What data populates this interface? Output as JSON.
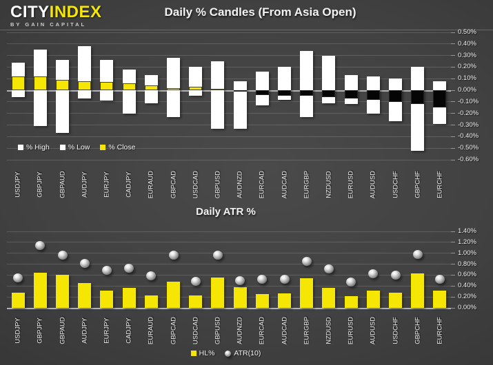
{
  "header": {
    "logo": {
      "brand_white": "CITY",
      "brand_yellow": "INDEX",
      "subtitle": "BY GAIN CAPITAL"
    }
  },
  "colors": {
    "accent_yellow": "#f5e606",
    "bar_white": "#ffffff",
    "close_negative": "#050505",
    "gridline": "rgba(255,255,255,0.15)",
    "zero_line": "#b2b2b2",
    "baseline": "#aeb2bf",
    "text": "#f0f0f0"
  },
  "chart_data": [
    {
      "type": "bar",
      "title": "Daily % Candles (From Asia Open)",
      "subtitle": "",
      "categories": [
        "USDJPY",
        "GBPJPY",
        "GBPAUD",
        "AUDJPY",
        "EURJPY",
        "CADJPY",
        "EURAUD",
        "GBPCAD",
        "USDCAD",
        "GBPUSD",
        "AUDNZD",
        "EURCAD",
        "AUDCAD",
        "EURGBP",
        "NZDUSD",
        "EURUSD",
        "AUDUSD",
        "USDCHF",
        "GBPCHF",
        "EURCHF"
      ],
      "series": [
        {
          "name": "% High",
          "values": [
            0.24,
            0.35,
            0.26,
            0.38,
            0.26,
            0.18,
            0.13,
            0.28,
            0.2,
            0.25,
            0.08,
            0.16,
            0.2,
            0.34,
            0.3,
            0.13,
            0.12,
            0.1,
            0.2,
            0.08
          ]
        },
        {
          "name": "% Low",
          "values": [
            -0.06,
            -0.31,
            -0.37,
            -0.07,
            -0.09,
            -0.2,
            -0.11,
            -0.23,
            -0.05,
            -0.33,
            -0.33,
            -0.13,
            -0.08,
            -0.23,
            -0.11,
            -0.12,
            -0.2,
            -0.27,
            -0.52,
            -0.29
          ]
        },
        {
          "name": "% Close",
          "values": [
            0.12,
            0.12,
            0.09,
            0.08,
            0.07,
            0.06,
            0.04,
            0.02,
            0.03,
            0.01,
            -0.01,
            -0.04,
            -0.05,
            -0.05,
            -0.06,
            -0.07,
            -0.08,
            -0.1,
            -0.12,
            -0.15
          ]
        }
      ],
      "ylim": [
        -0.6,
        0.5
      ],
      "ytick_step": 0.1,
      "yticks": [
        {
          "label": "0.50%",
          "value": 0.5
        },
        {
          "label": "0.40%",
          "value": 0.4
        },
        {
          "label": "0.30%",
          "value": 0.3
        },
        {
          "label": "0.20%",
          "value": 0.2
        },
        {
          "label": "0.10%",
          "value": 0.1
        },
        {
          "label": "0.00%",
          "value": 0.0
        },
        {
          "label": "-0.10%",
          "value": -0.1
        },
        {
          "label": "-0.20%",
          "value": -0.2
        },
        {
          "label": "-0.30%",
          "value": -0.3
        },
        {
          "label": "-0.40%",
          "value": -0.4
        },
        {
          "label": "-0.50%",
          "value": -0.5
        },
        {
          "label": "-0.60%",
          "value": -0.6
        }
      ],
      "axis_side": "right",
      "grid": true,
      "legend_position": "bottom-left-inside"
    },
    {
      "type": "bar",
      "title": "Daily ATR %",
      "subtitle": "",
      "categories": [
        "USDJPY",
        "GBPJPY",
        "GBPAUD",
        "AUDJPY",
        "EURJPY",
        "CADJPY",
        "EURAUD",
        "GBPCAD",
        "USDCAD",
        "GBPUSD",
        "AUDNZD",
        "EURCAD",
        "AUDCAD",
        "EURGBP",
        "NZDUSD",
        "EURUSD",
        "AUDUSD",
        "USDCHF",
        "GBPCHF",
        "EURCHF"
      ],
      "series": [
        {
          "name": "HL%",
          "style": "bar",
          "values": [
            0.28,
            0.64,
            0.61,
            0.45,
            0.31,
            0.37,
            0.23,
            0.48,
            0.23,
            0.55,
            0.38,
            0.25,
            0.27,
            0.54,
            0.36,
            0.21,
            0.31,
            0.28,
            0.63,
            0.31
          ]
        },
        {
          "name": "ATR(10)",
          "style": "sphere",
          "values": [
            0.55,
            1.14,
            0.96,
            0.81,
            0.69,
            0.73,
            0.59,
            0.97,
            0.48,
            0.97,
            0.5,
            0.52,
            0.52,
            0.85,
            0.71,
            0.47,
            0.62,
            0.6,
            0.98,
            0.52
          ]
        }
      ],
      "ylim": [
        0.0,
        1.4
      ],
      "ytick_step": 0.2,
      "yticks": [
        {
          "label": "1.40%",
          "value": 1.4
        },
        {
          "label": "1.20%",
          "value": 1.2
        },
        {
          "label": "1.00%",
          "value": 1.0
        },
        {
          "label": "0.80%",
          "value": 0.8
        },
        {
          "label": "0.60%",
          "value": 0.6
        },
        {
          "label": "0.40%",
          "value": 0.4
        },
        {
          "label": "0.20%",
          "value": 0.2
        },
        {
          "label": "0.00%",
          "value": 0.0
        }
      ],
      "axis_side": "right",
      "grid": true,
      "legend_position": "bottom-center"
    }
  ]
}
